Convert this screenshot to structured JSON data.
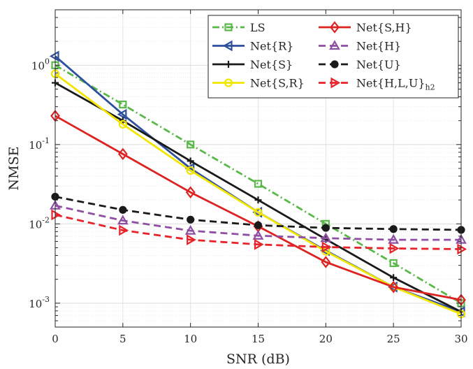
{
  "chart_data": {
    "type": "line",
    "title": "",
    "xlabel": "SNR (dB)",
    "ylabel": "NMSE",
    "x": [
      0,
      5,
      10,
      15,
      20,
      25,
      30
    ],
    "xlim": [
      0,
      30
    ],
    "ylim": [
      0.0005,
      5
    ],
    "yscale": "log",
    "grid": true,
    "legend_position": "top-right",
    "x_tick_labels": [
      "0",
      "5",
      "10",
      "15",
      "20",
      "25",
      "30"
    ],
    "y_ticks": [
      {
        "value": 0.001,
        "base": "10",
        "exp": "-3"
      },
      {
        "value": 0.01,
        "base": "10",
        "exp": "-2"
      },
      {
        "value": 0.1,
        "base": "10",
        "exp": "-1"
      },
      {
        "value": 1,
        "base": "10",
        "exp": "0"
      }
    ],
    "series": [
      {
        "name": "LS",
        "sub": "",
        "color": "#5ab84a",
        "dash": "dashdot",
        "marker": "square",
        "values": [
          1.0,
          0.32,
          0.1,
          0.032,
          0.01,
          0.0032,
          0.001
        ]
      },
      {
        "name": "Net{R}",
        "sub": "",
        "color": "#2e4e9e",
        "dash": "solid",
        "marker": "triangle-left",
        "values": [
          1.3,
          0.24,
          0.05,
          0.014,
          0.0046,
          0.0016,
          0.00078
        ]
      },
      {
        "name": "Net{S}",
        "sub": "",
        "color": "#1a1a1a",
        "dash": "solid",
        "marker": "plus",
        "values": [
          0.6,
          0.2,
          0.062,
          0.02,
          0.0064,
          0.0021,
          0.00078
        ]
      },
      {
        "name": "Net{S,R}",
        "sub": "",
        "color": "#f2e600",
        "dash": "solid",
        "marker": "circle",
        "values": [
          0.78,
          0.18,
          0.047,
          0.014,
          0.0045,
          0.0016,
          0.00073
        ]
      },
      {
        "name": "Net{S,H}",
        "sub": "",
        "color": "#dd2222",
        "dash": "solid",
        "marker": "diamond",
        "values": [
          0.23,
          0.076,
          0.025,
          0.0093,
          0.0033,
          0.0016,
          0.0011
        ]
      },
      {
        "name": "Net{H}",
        "sub": "",
        "color": "#8e4fa3",
        "dash": "dashed",
        "marker": "triangle-up",
        "values": [
          0.017,
          0.011,
          0.0082,
          0.0071,
          0.0066,
          0.0063,
          0.0063
        ]
      },
      {
        "name": "Net{U}",
        "sub": "",
        "color": "#1a1a1a",
        "dash": "dashed",
        "marker": "dot",
        "values": [
          0.022,
          0.015,
          0.0113,
          0.0096,
          0.0089,
          0.0086,
          0.0084
        ]
      },
      {
        "name": "Net{H,L,U}",
        "sub": "h2",
        "color": "#e8222a",
        "dash": "dashed",
        "marker": "triangle-right",
        "values": [
          0.013,
          0.0083,
          0.0063,
          0.0055,
          0.0051,
          0.0049,
          0.0048
        ]
      }
    ]
  }
}
